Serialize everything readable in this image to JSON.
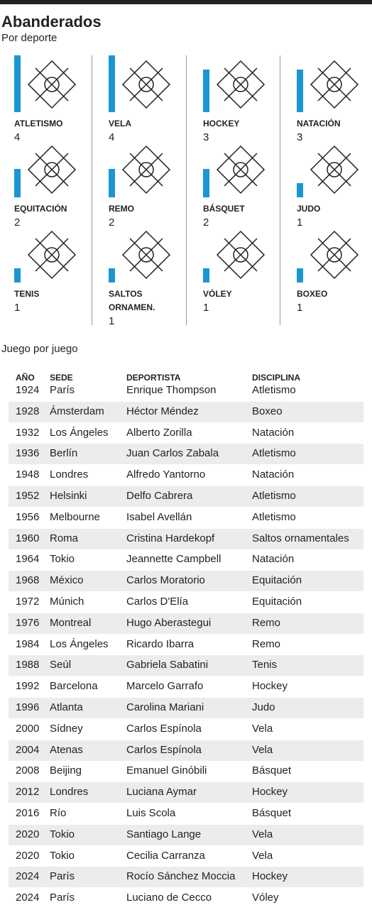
{
  "header": {
    "title": "Abanderados",
    "subtitle": "Por deporte"
  },
  "sports": [
    {
      "name": "ATLETISMO",
      "count": 4
    },
    {
      "name": "VELA",
      "count": 4
    },
    {
      "name": "HOCKEY",
      "count": 3
    },
    {
      "name": "NATACIÓN",
      "count": 3
    },
    {
      "name": "EQUITACIÓN",
      "count": 2
    },
    {
      "name": "REMO",
      "count": 2
    },
    {
      "name": "BÁSQUET",
      "count": 2
    },
    {
      "name": "JUDO",
      "count": 1
    },
    {
      "name": "TENIS",
      "count": 1
    },
    {
      "name": "SALTOS ORNAMEN.",
      "count": 1
    },
    {
      "name": "VÓLEY",
      "count": 1
    },
    {
      "name": "BOXEO",
      "count": 1
    }
  ],
  "table": {
    "title": "Juego por juego",
    "columns": [
      "AÑO",
      "SEDE",
      "DEPORTISTA",
      "DISCIPLINA"
    ],
    "rows": [
      [
        "1924",
        "París",
        "Enrique Thompson",
        "Atletismo"
      ],
      [
        "1928",
        "Ámsterdam",
        "Héctor Méndez",
        "Boxeo"
      ],
      [
        "1932",
        "Los Ángeles",
        "Alberto Zorilla",
        "Natación"
      ],
      [
        "1936",
        "Berlín",
        "Juan Carlos Zabala",
        "Atletismo"
      ],
      [
        "1948",
        "Londres",
        "Alfredo Yantorno",
        "Natación"
      ],
      [
        "1952",
        "Helsinki",
        "Delfo Cabrera",
        "Atletismo"
      ],
      [
        "1956",
        "Melbourne",
        "Isabel Avellán",
        "Atletismo"
      ],
      [
        "1960",
        "Roma",
        "Cristina Hardekopf",
        "Saltos ornamentales"
      ],
      [
        "1964",
        "Tokio",
        "Jeannette Campbell",
        "Natación"
      ],
      [
        "1968",
        "México",
        "Carlos Moratorio",
        "Equitación"
      ],
      [
        "1972",
        "Múnich",
        "Carlos D'Elía",
        "Equitación"
      ],
      [
        "1976",
        "Montreal",
        "Hugo Aberastegui",
        "Remo"
      ],
      [
        "1984",
        "Los Ángeles",
        "Ricardo Ibarra",
        "Remo"
      ],
      [
        "1988",
        "Seúl",
        "Gabriela Sabatini",
        "Tenis"
      ],
      [
        "1992",
        "Barcelona",
        "Marcelo Garrafo",
        "Hockey"
      ],
      [
        "1996",
        "Atlanta",
        "Carolina Mariani",
        "Judo"
      ],
      [
        "2000",
        "Sídney",
        "Carlos Espínola",
        "Vela"
      ],
      [
        "2004",
        "Atenas",
        "Carlos Espínola",
        "Vela"
      ],
      [
        "2008",
        "Beijing",
        "Emanuel Ginóbili",
        "Básquet"
      ],
      [
        "2012",
        "Londres",
        "Luciana Aymar",
        "Hockey"
      ],
      [
        "2016",
        "Río",
        "Luis Scola",
        "Básquet"
      ],
      [
        "2020",
        "Tokio",
        "Santiago Lange",
        "Vela"
      ],
      [
        "2020",
        "Tokio",
        "Cecilia Carranza",
        "Vela"
      ],
      [
        "2024",
        "París",
        "Rocío Sánchez Moccia",
        "Hockey"
      ],
      [
        "2024",
        "París",
        "Luciano de Cecco",
        "Vóley"
      ]
    ]
  }
}
